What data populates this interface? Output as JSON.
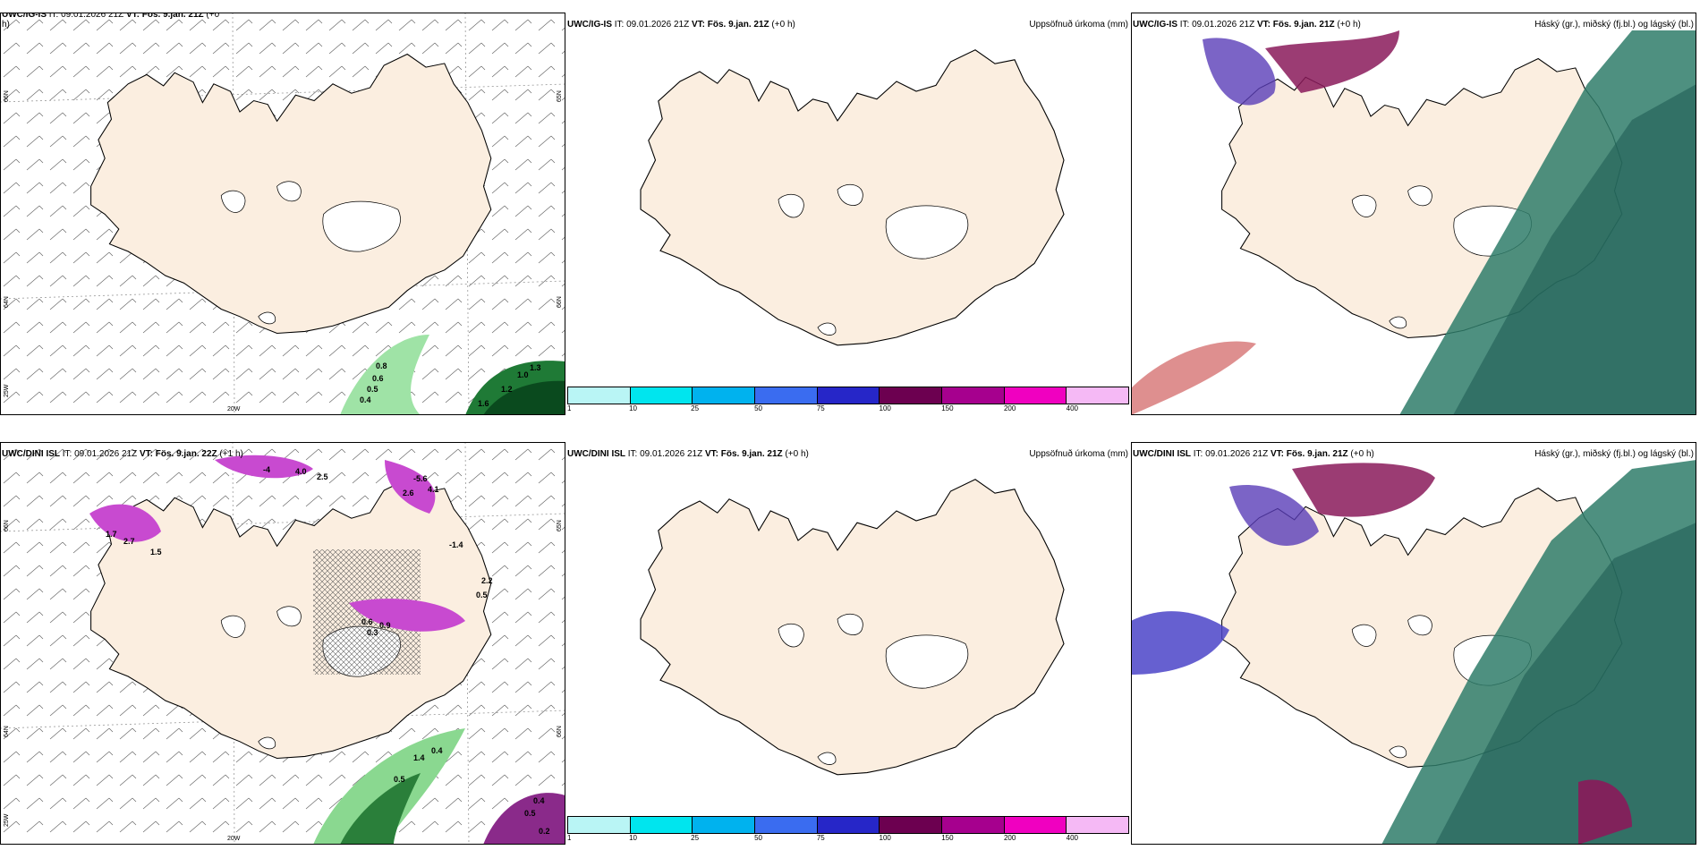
{
  "panels": {
    "p1": {
      "title_model": "UWC/IG-IS",
      "title_it": " IT: 09.01.2026 21Z ",
      "title_vt": "VT: Fös. 9.jan. 21Z",
      "title_lead": " (+0",
      "title_cont": "h)",
      "grid_lat1": "66N",
      "grid_lat2": "64N",
      "grid_lon": "20W",
      "grid_lon2": "25W",
      "grid_lat3": "65N",
      "grid_lat4": "66N",
      "labels": [
        "0.8",
        "0.6",
        "0.5",
        "0.4",
        "1.2",
        "1.0",
        "1.3",
        "1.6"
      ]
    },
    "p2": {
      "title_model": "UWC/IG-IS",
      "title_it": " IT: 09.01.2026 21Z ",
      "title_vt": "VT: Fös. 9.jan. 21Z",
      "title_lead": " (+0 h)",
      "right": "Uppsöfnuð úrkoma (mm)"
    },
    "p3": {
      "title_model": "UWC/IG-IS",
      "title_it": " IT: 09.01.2026 21Z ",
      "title_vt": "VT: Fös. 9.jan. 21Z",
      "title_lead": " (+0 h)",
      "right": "Háský (gr.), miðský (fj.bl.) og lágský (bl.)"
    },
    "p4": {
      "title_model": "UWC/DINI ISL",
      "title_it": " IT: 09.01.2026 21Z ",
      "title_vt": "VT: Fös. 9.jan. 22Z",
      "title_lead": " (+1 h)",
      "grid_lat1": "66N",
      "grid_lat2": "64N",
      "grid_lon": "20W",
      "grid_lon2": "25W",
      "grid_lat3": "65N",
      "grid_lat4": "66N",
      "labels": [
        "1.7",
        "2.7",
        "1.5",
        "-4",
        "4.0",
        "2.5",
        "-5.6",
        "2.6",
        "4.1",
        "-1.4",
        "2.2",
        "0.5",
        "0.6",
        "0.3",
        "0.9",
        "1.4",
        "0.4",
        "0.5",
        "0.4",
        "0.5",
        "0.2"
      ]
    },
    "p5": {
      "title_model": "UWC/DINI ISL",
      "title_it": " IT: 09.01.2026 21Z ",
      "title_vt": "VT: Fös. 9.jan. 21Z",
      "title_lead": " (+0 h)",
      "right": "Uppsöfnuð úrkoma (mm)"
    },
    "p6": {
      "title_model": "UWC/DINI ISL",
      "title_it": " IT: 09.01.2026 21Z ",
      "title_vt": "VT: Fös. 9.jan. 21Z",
      "title_lead": " (+0 h)",
      "right": "Háský (gr.), miðský (fj.bl.) og lágský (bl.)"
    }
  },
  "legend": {
    "labels": [
      "1",
      "10",
      "25",
      "50",
      "75",
      "100",
      "150",
      "200",
      "400"
    ],
    "colors": [
      "#b9f5f5",
      "#00e5ee",
      "#00b2ee",
      "#3a6cf0",
      "#2626c8",
      "#6c0050",
      "#a6008e",
      "#f000c0",
      "#f5b9f5"
    ]
  }
}
